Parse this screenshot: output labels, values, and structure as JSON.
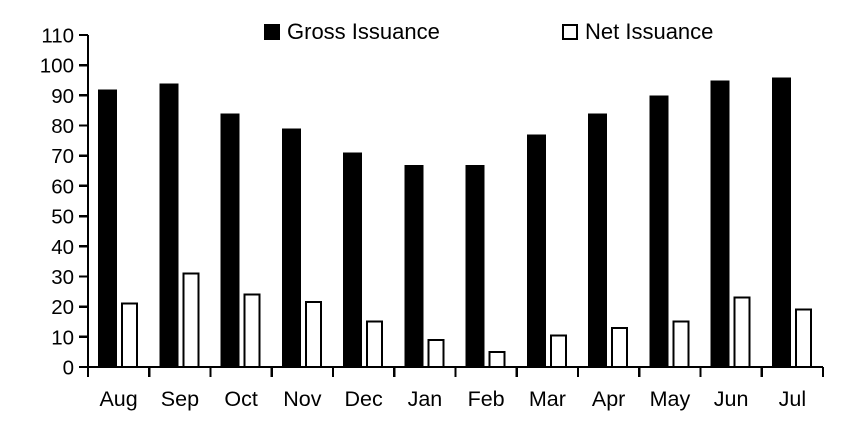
{
  "chart_data": {
    "type": "bar",
    "title": "",
    "xlabel": "",
    "ylabel": "",
    "categories": [
      "Aug",
      "Sep",
      "Oct",
      "Nov",
      "Dec",
      "Jan",
      "Feb",
      "Mar",
      "Apr",
      "May",
      "Jun",
      "Jul"
    ],
    "series": [
      {
        "name": "Gross Issuance",
        "fill": "#000000",
        "stroke": "#000000",
        "values": [
          92,
          94,
          84,
          79,
          71,
          67,
          67,
          77,
          84,
          90,
          95,
          96
        ]
      },
      {
        "name": "Net Issuance",
        "fill": "#ffffff",
        "stroke": "#000000",
        "values": [
          21,
          31,
          24,
          21.5,
          15,
          9,
          5,
          10.5,
          13,
          15,
          23,
          19
        ]
      }
    ],
    "ylim": [
      0,
      110
    ],
    "y_ticks": [
      0,
      10,
      20,
      30,
      40,
      50,
      60,
      70,
      80,
      90,
      100,
      110
    ],
    "grid": false,
    "legend_position": "top",
    "axis_color": "#000000",
    "background_color": "#ffffff"
  }
}
